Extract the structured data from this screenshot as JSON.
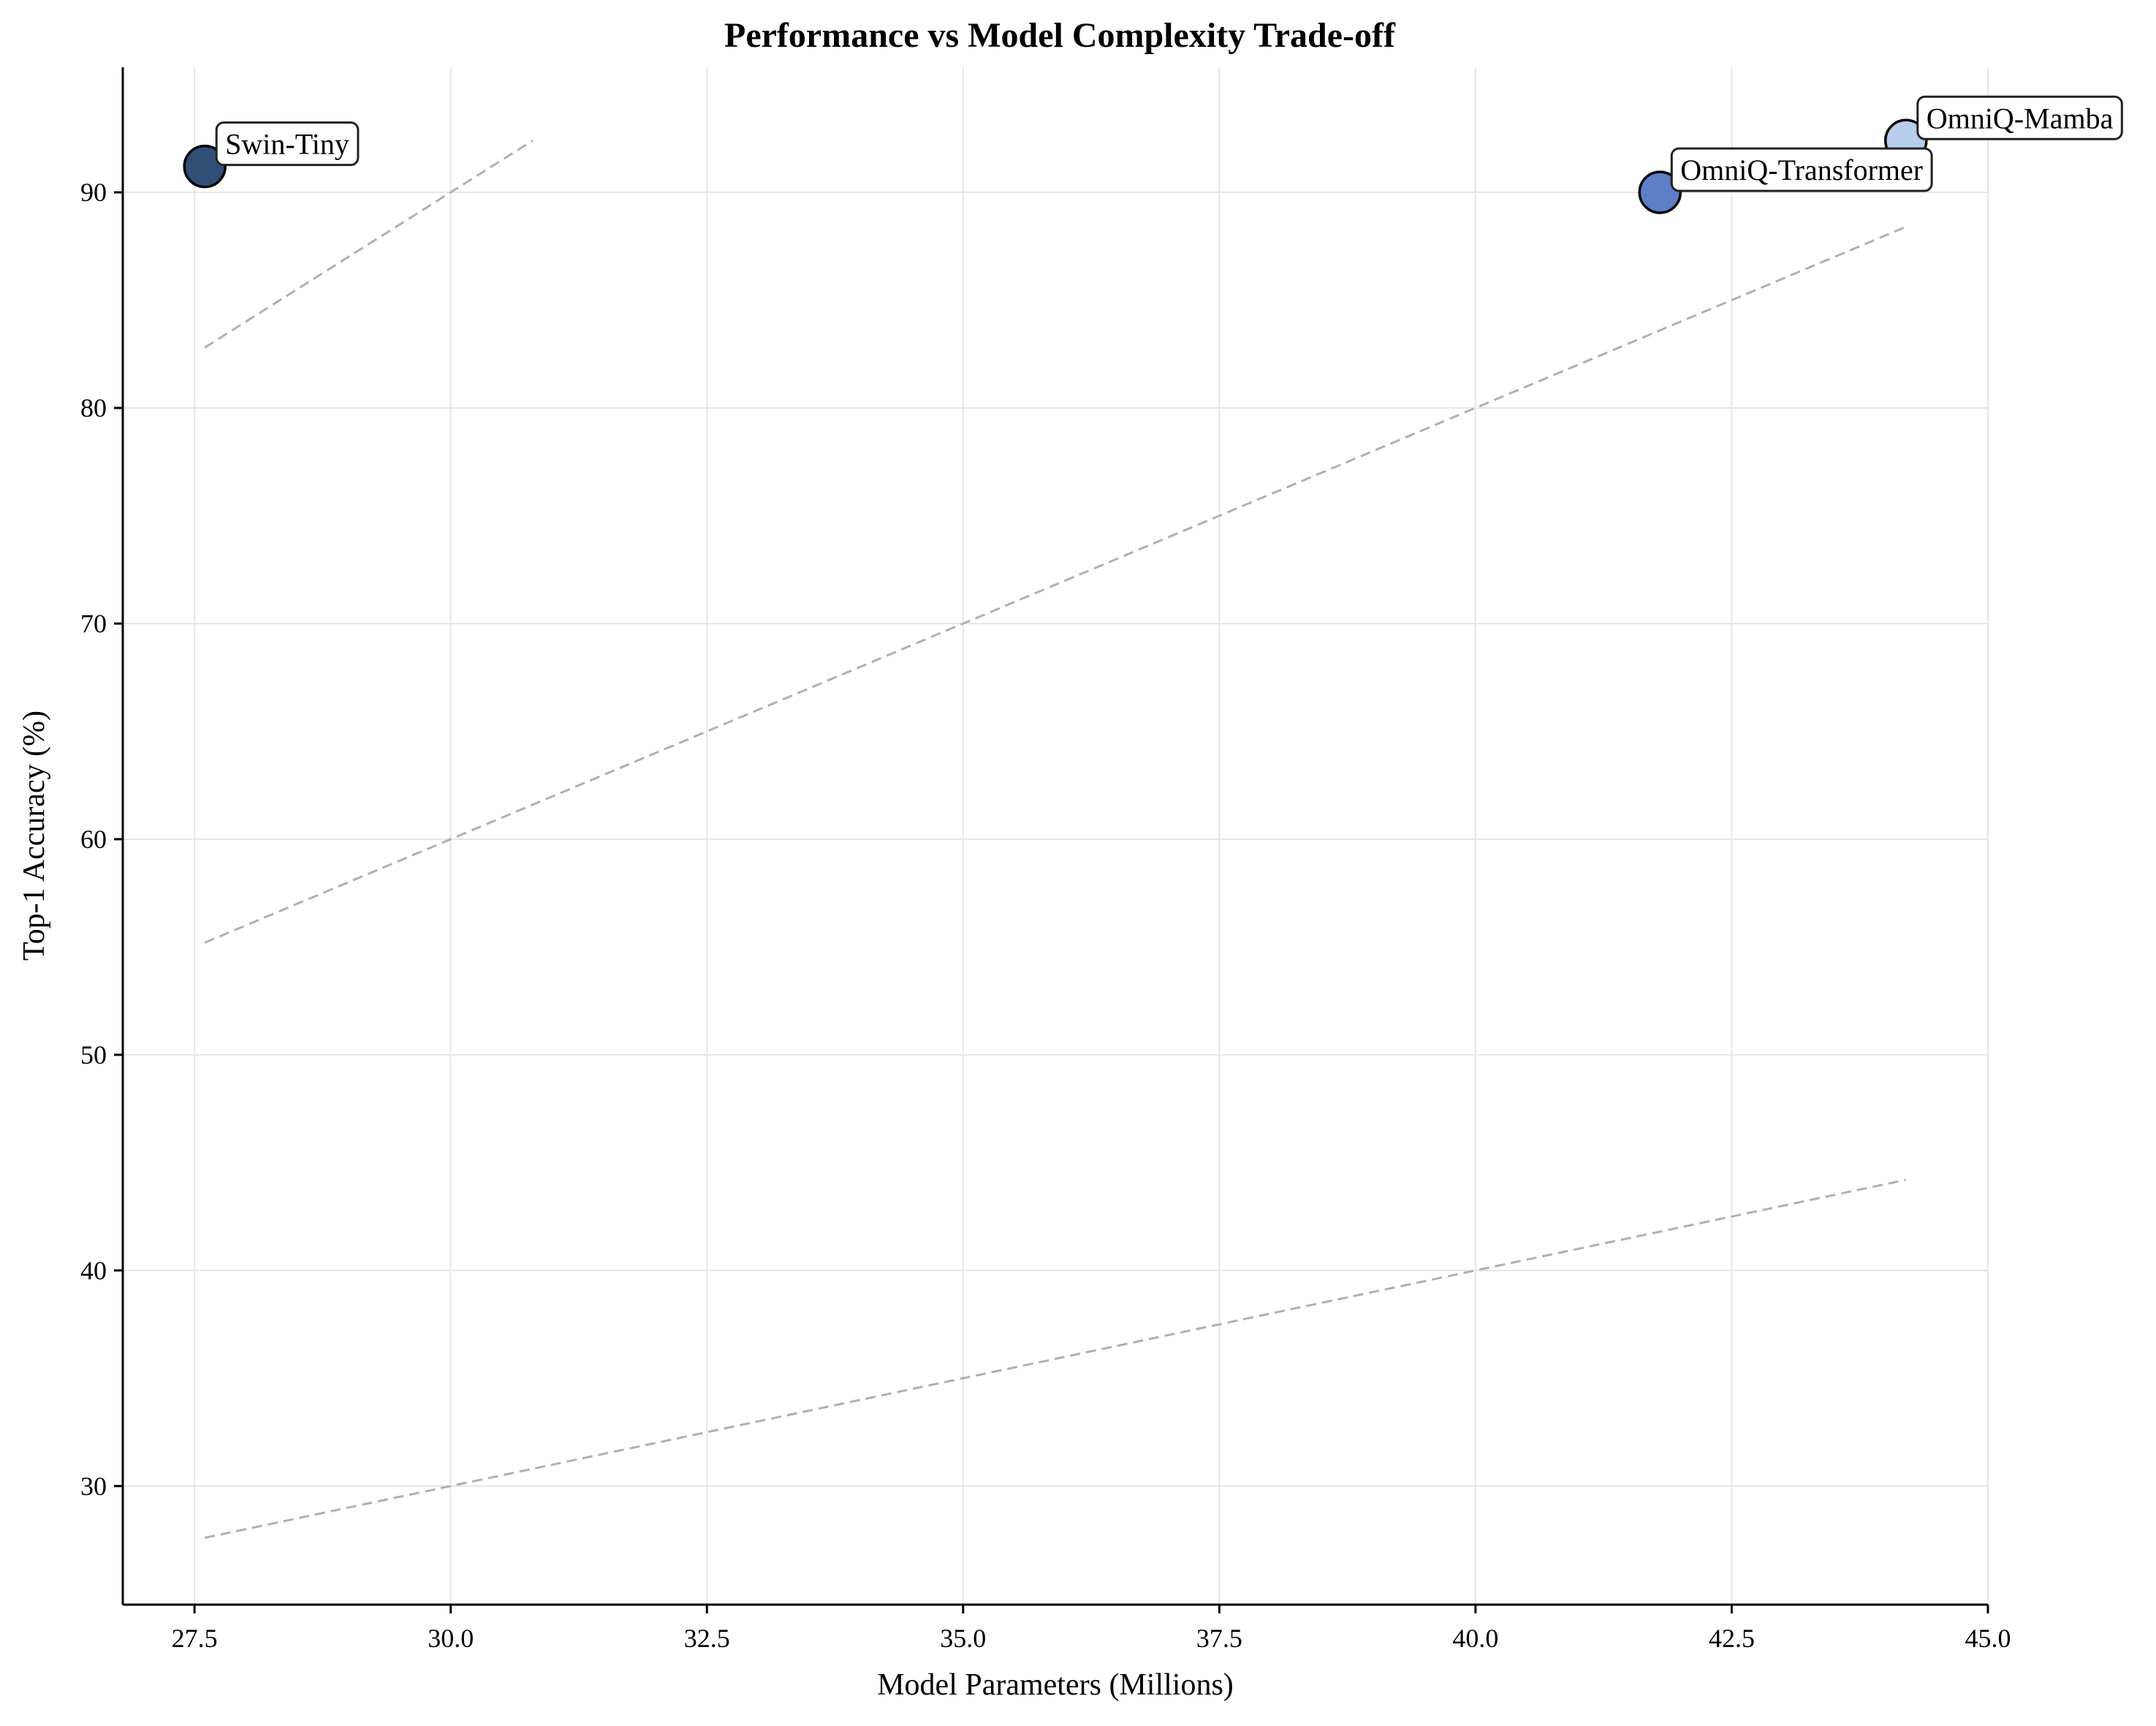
{
  "chart_data": {
    "type": "scatter",
    "title": "Performance vs Model Complexity Trade-off",
    "xlabel": "Model Parameters (Millions)",
    "ylabel": "Top-1 Accuracy (%)",
    "xlim": [
      26.8,
      45.0
    ],
    "ylim": [
      24.5,
      95.8
    ],
    "xticks": [
      27.5,
      30.0,
      32.5,
      35.0,
      37.5,
      40.0,
      42.5,
      45.0
    ],
    "xtick_labels": [
      "27.5",
      "30.0",
      "32.5",
      "35.0",
      "37.5",
      "40.0",
      "42.5",
      "45.0"
    ],
    "yticks": [
      30,
      40,
      50,
      60,
      70,
      80,
      90
    ],
    "ytick_labels": [
      "30",
      "40",
      "50",
      "60",
      "70",
      "80",
      "90"
    ],
    "grid": true,
    "points": [
      {
        "label": "Swin-Tiny",
        "x": 27.6,
        "y": 91.2,
        "color": "#2f4f77"
      },
      {
        "label": "OmniQ-Transformer",
        "x": 41.8,
        "y": 90.0,
        "color": "#5d7fc8"
      },
      {
        "label": "OmniQ-Mamba",
        "x": 44.2,
        "y": 92.4,
        "color": "#b7cdec"
      }
    ],
    "trend_lines": [
      {
        "x": [
          27.6,
          30.8
        ],
        "y": [
          82.8,
          92.4
        ]
      },
      {
        "x": [
          27.6,
          44.2
        ],
        "y": [
          55.2,
          88.4
        ]
      },
      {
        "x": [
          27.6,
          44.2
        ],
        "y": [
          27.6,
          44.2
        ]
      }
    ]
  }
}
